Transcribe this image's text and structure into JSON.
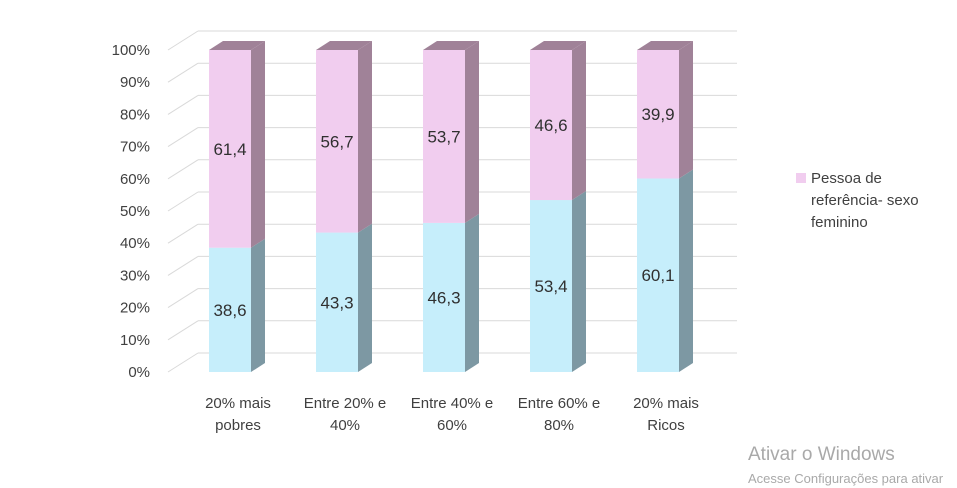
{
  "chart_data": {
    "type": "bar",
    "stacked": true,
    "three_d": true,
    "categories": [
      "20% mais|pobres",
      "Entre 20% e|40%",
      "Entre 40% e|60%",
      "Entre 60% e|80%",
      "20% mais|Ricos"
    ],
    "series": [
      {
        "key": "bottom",
        "values": [
          38.6,
          43.3,
          46.3,
          53.4,
          60.1
        ],
        "labels": [
          "38,6",
          "43,3",
          "46,3",
          "53,4",
          "60,1"
        ],
        "color": "#c6eefb",
        "side_color": "#7d98a3"
      },
      {
        "key": "top",
        "name": "Pessoa de referência- sexo feminino",
        "values": [
          61.4,
          56.7,
          53.7,
          46.6,
          39.9
        ],
        "labels": [
          "61,4",
          "56,7",
          "53,7",
          "46,6",
          "39,9"
        ],
        "color": "#f1cdef",
        "side_color": "#a08298"
      }
    ],
    "y_ticks": [
      "0%",
      "10%",
      "20%",
      "30%",
      "40%",
      "50%",
      "60%",
      "70%",
      "80%",
      "90%",
      "100%"
    ],
    "ylim": [
      0,
      100
    ],
    "grid": true,
    "legend_position": "right"
  },
  "legend": {
    "label": "Pessoa de referência- sexo feminino",
    "color": "#f1cdef"
  },
  "watermark": {
    "title": "Ativar o Windows",
    "subtitle": "Acesse Configurações para ativar"
  }
}
